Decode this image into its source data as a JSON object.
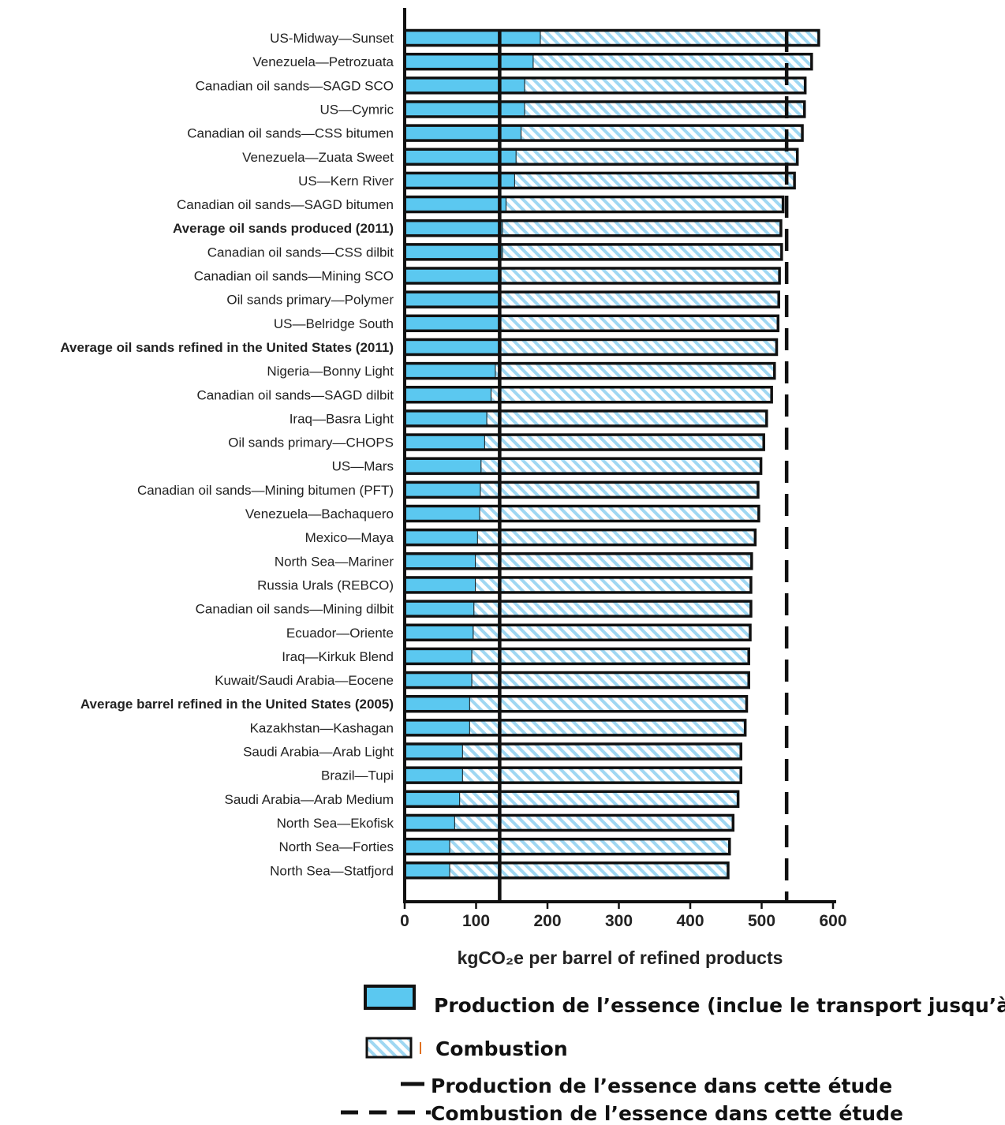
{
  "chart_data": {
    "type": "bar",
    "orientation": "horizontal",
    "stacked": true,
    "categories": [
      "US-Midway—Sunset",
      "Venezuela—Petrozuata",
      "Canadian oil sands—SAGD SCO",
      "US—Cymric",
      "Canadian oil sands—CSS bitumen",
      "Venezuela—Zuata Sweet",
      "US—Kern River",
      "Canadian oil sands—SAGD bitumen",
      "Average oil sands produced (2011)",
      "Canadian oil sands—CSS dilbit",
      "Canadian oil sands—Mining SCO",
      "Oil sands primary—Polymer",
      "US—Belridge South",
      "Average oil sands refined in the United States (2011)",
      "Nigeria—Bonny Light",
      "Canadian oil sands—SAGD dilbit",
      "Iraq—Basra Light",
      "Oil sands primary—CHOPS",
      "US—Mars",
      "Canadian oil sands—Mining bitumen (PFT)",
      "Venezuela—Bachaquero",
      "Mexico—Maya",
      "North Sea—Mariner",
      "Russia Urals (REBCO)",
      "Canadian oil sands—Mining dilbit",
      "Ecuador—Oriente",
      "Iraq—Kirkuk Blend",
      "Kuwait/Saudi Arabia—Eocene",
      "Average barrel refined in the United States (2005)",
      "Kazakhstan—Kashagan",
      "Saudi Arabia—Arab Light",
      "Brazil—Tupi",
      "Saudi Arabia—Arab Medium",
      "North Sea—Ekofisk",
      "North Sea—Forties",
      "North Sea—Statfjord"
    ],
    "bold_categories": [
      "Average oil sands produced (2011)",
      "Average oil sands refined in the United States (2011)",
      "Average barrel refined in the United States (2005)"
    ],
    "series": [
      {
        "name": "Production de l’essence (inclue le transport jusqu’à",
        "color": "#5bc8f0",
        "pattern": "solid",
        "values": [
          190,
          180,
          168,
          168,
          163,
          156,
          154,
          142,
          137,
          137,
          135,
          134,
          133,
          133,
          127,
          121,
          115,
          112,
          107,
          106,
          105,
          102,
          99,
          99,
          97,
          96,
          94,
          94,
          91,
          91,
          81,
          81,
          77,
          70,
          63,
          63
        ]
      },
      {
        "name": "Combustion",
        "color": "#7ec8ee",
        "pattern": "hatched",
        "values": [
          390,
          390,
          393,
          392,
          394,
          394,
          392,
          388,
          390,
          391,
          390,
          390,
          390,
          388,
          391,
          393,
          392,
          391,
          392,
          389,
          391,
          389,
          387,
          386,
          388,
          388,
          388,
          388,
          388,
          386,
          390,
          390,
          390,
          390,
          392,
          390
        ]
      }
    ],
    "reference_lines": [
      {
        "name": "Production de l’essence dans cette étude",
        "value": 133,
        "style": "solid"
      },
      {
        "name": "Combustion de l’essence dans cette étude",
        "value": 535,
        "style": "dashed"
      }
    ],
    "xlabel": "kgCO₂e per barrel of refined products",
    "xticks": [
      0,
      100,
      200,
      300,
      400,
      500,
      600
    ],
    "xlim": [
      0,
      600
    ],
    "grid": false,
    "legend_position": "bottom-right"
  },
  "legend": {
    "items": [
      {
        "label": "Production de l’essence (inclue le transport jusqu’à",
        "swatch": "solid-blue"
      },
      {
        "label": "Combustion",
        "swatch": "hatched-blue"
      },
      {
        "label": "Production de l’essence dans cette étude",
        "swatch": "solid-line"
      },
      {
        "label": "Combustion de l’essence dans cette étude",
        "swatch": "dashed-line"
      }
    ]
  }
}
